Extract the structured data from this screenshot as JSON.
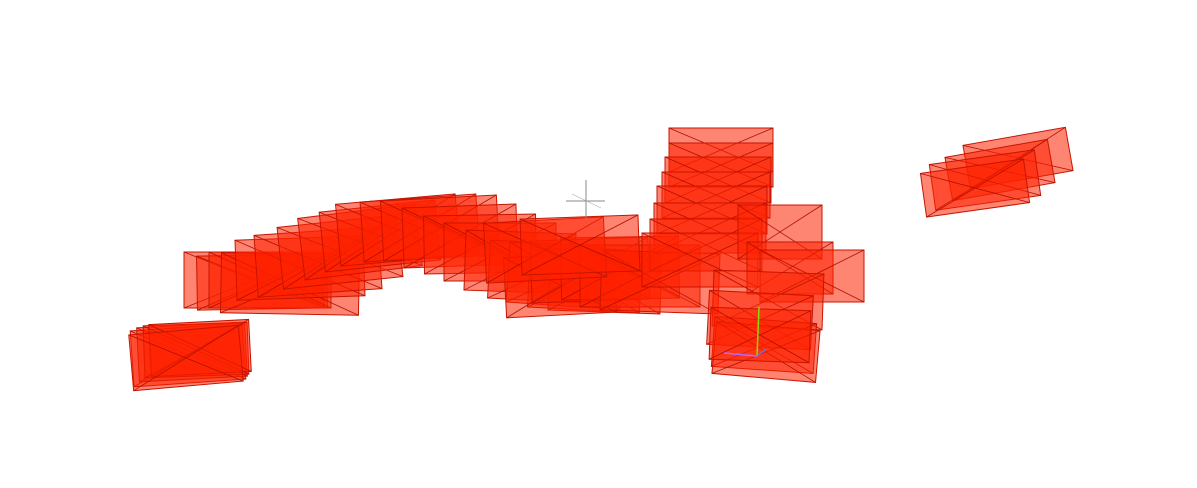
{
  "scene": {
    "background_color": "#ffffff",
    "frustum_fill_color": "#ff2000",
    "frustum_fill_opacity": 0.55,
    "frustum_edge_color": "#c81400",
    "gizmo_x_color": "#b36bff",
    "gizmo_y_color": "#88e000",
    "cursor_color": "#888888"
  }
}
